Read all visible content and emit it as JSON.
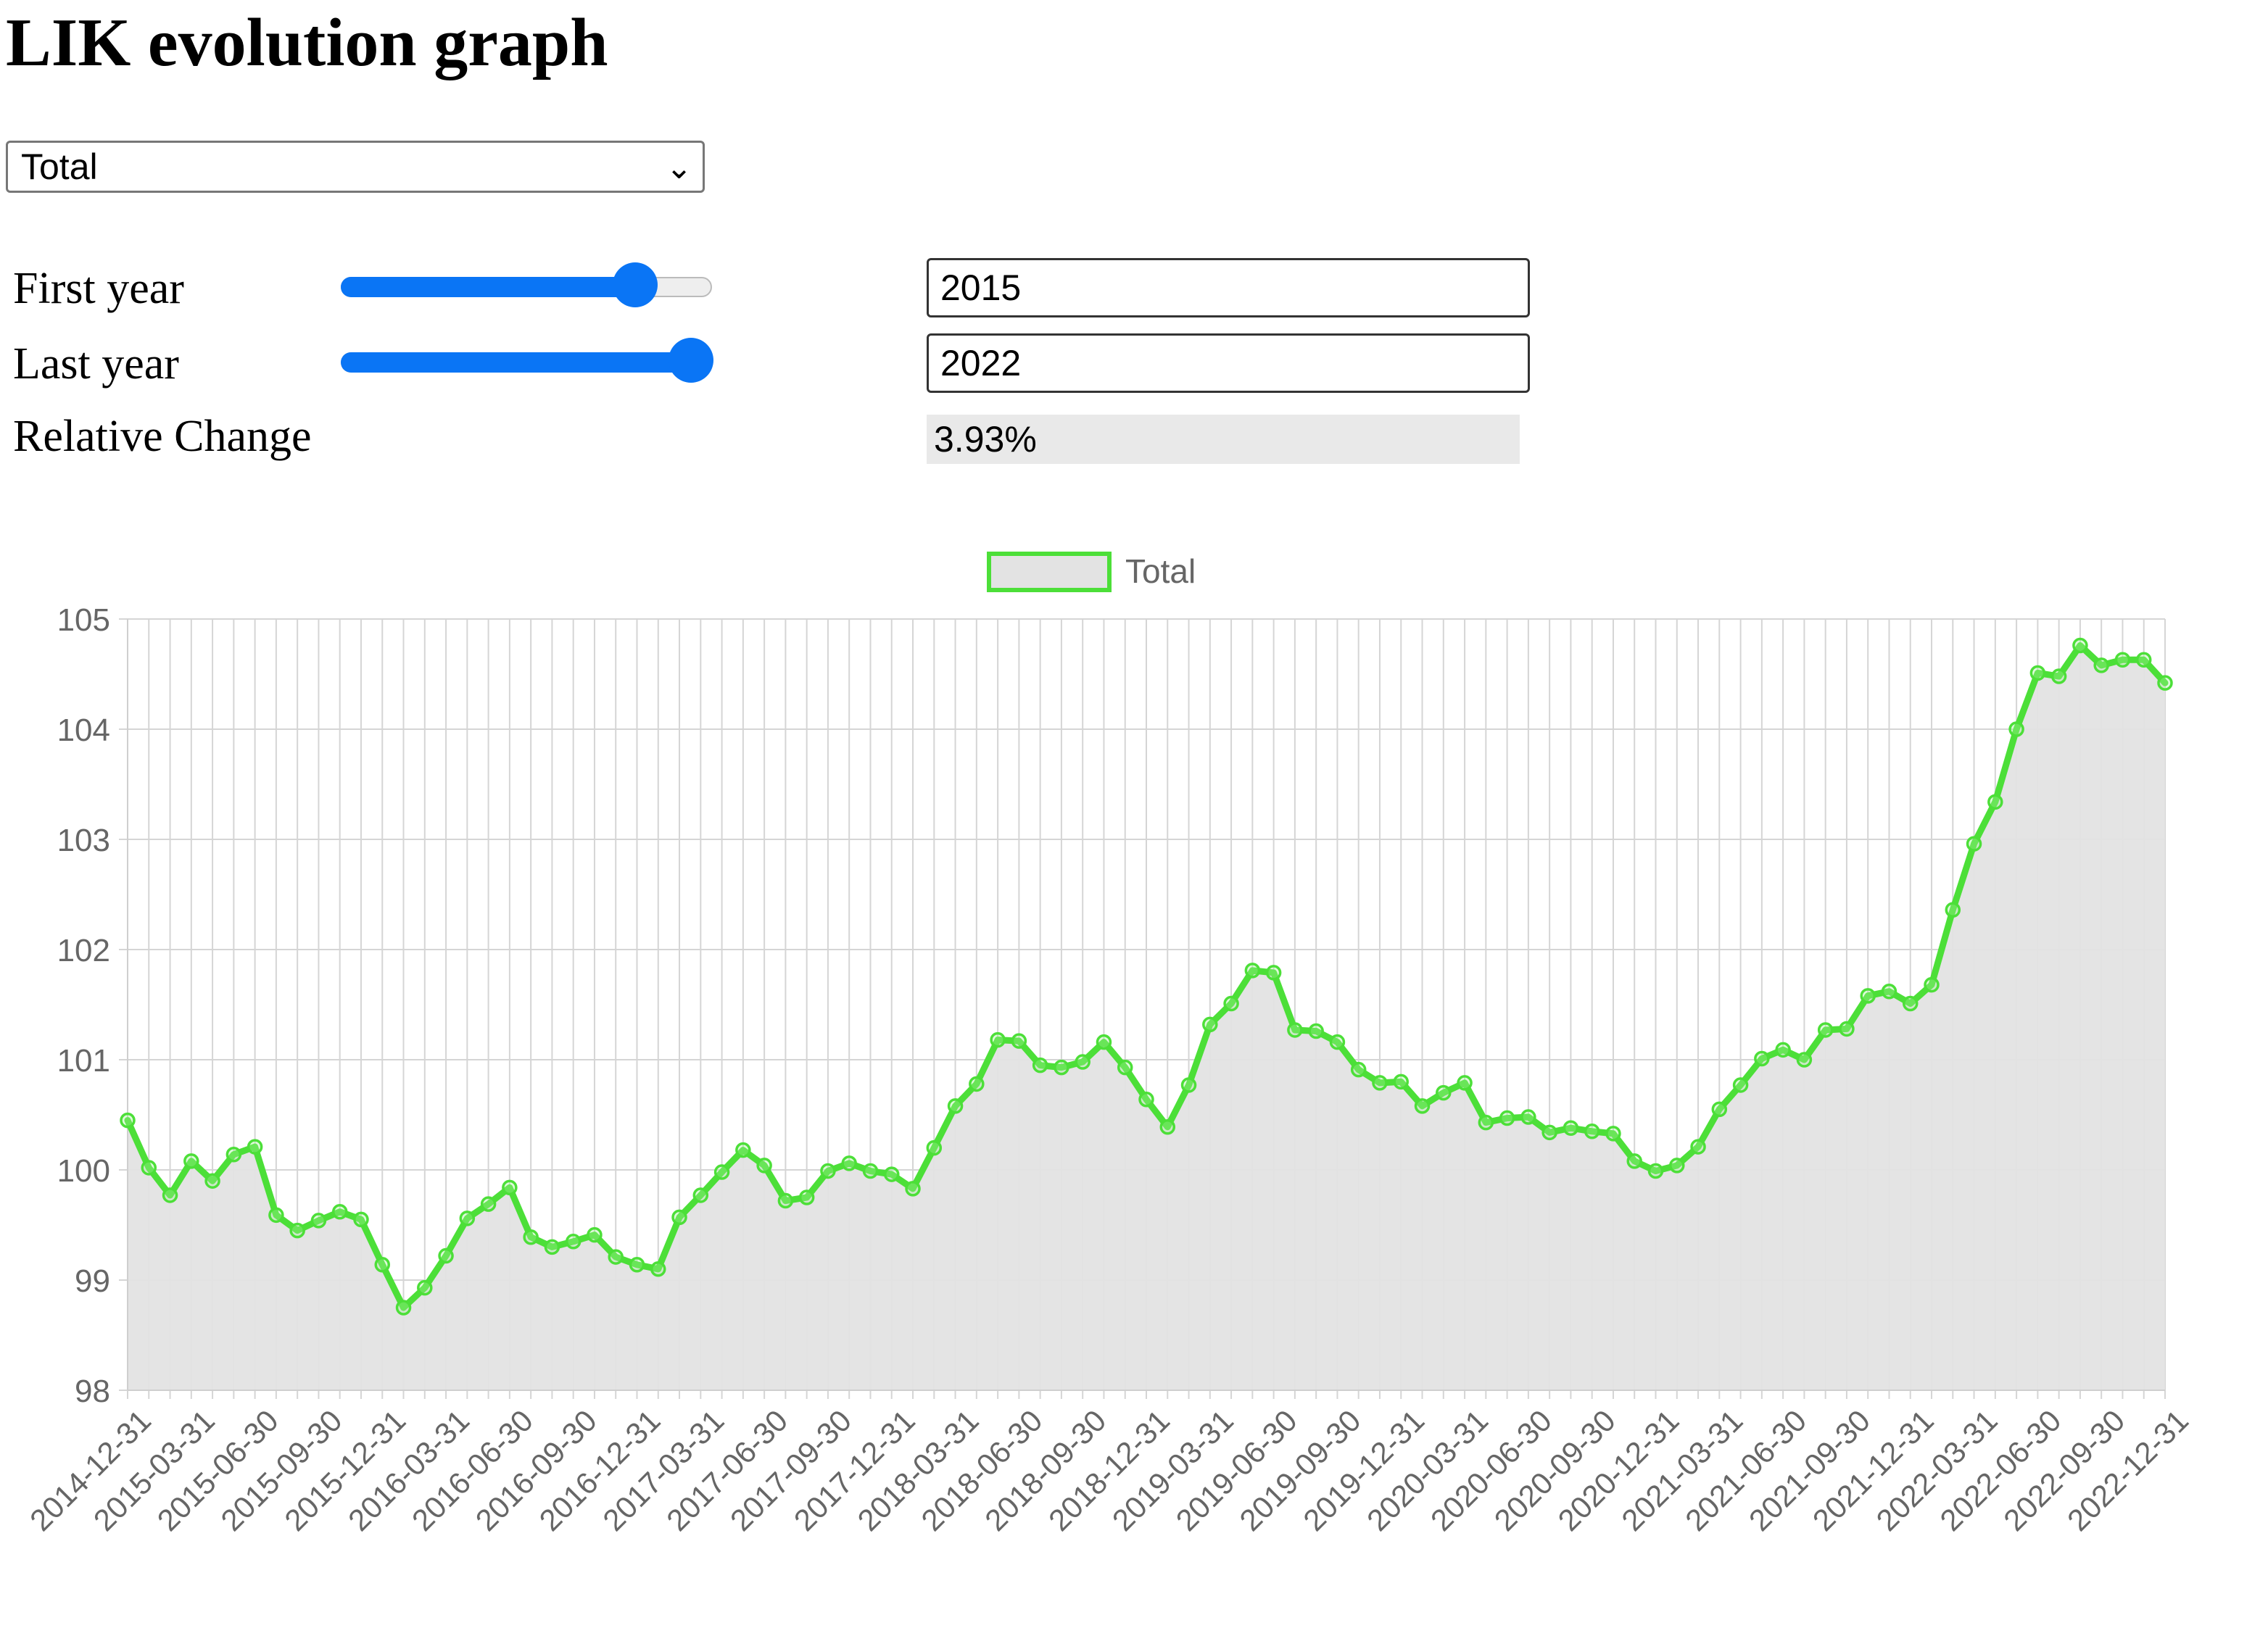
{
  "page": {
    "title": "LIK evolution graph"
  },
  "selector": {
    "selected": "Total"
  },
  "controls": {
    "first_year": {
      "label": "First year",
      "value": "2015",
      "slider_fraction": 0.79
    },
    "last_year": {
      "label": "Last year",
      "value": "2022",
      "slider_fraction": 0.94
    },
    "relative_change": {
      "label": "Relative Change",
      "value": "3.93%"
    }
  },
  "colors": {
    "slider": "#0a75f5",
    "line": "#4cdf38",
    "area": "#e3e3e3",
    "grid": "#d5d5d5"
  },
  "chart_data": {
    "type": "line",
    "legend": {
      "label": "Total",
      "placement": "top-center"
    },
    "fill": true,
    "grid": true,
    "ylim": [
      98,
      105
    ],
    "yticks": [
      98,
      99,
      100,
      101,
      102,
      103,
      104,
      105
    ],
    "xtick_labels": [
      "2014-12-31",
      "2015-03-31",
      "2015-06-30",
      "2015-09-30",
      "2015-12-31",
      "2016-03-31",
      "2016-06-30",
      "2016-09-30",
      "2016-12-31",
      "2017-03-31",
      "2017-06-30",
      "2017-09-30",
      "2017-12-31",
      "2018-03-31",
      "2018-06-30",
      "2018-09-30",
      "2018-12-31",
      "2019-03-31",
      "2019-06-30",
      "2019-09-30",
      "2019-12-31",
      "2020-03-31",
      "2020-06-30",
      "2020-09-30",
      "2020-12-31",
      "2021-03-31",
      "2021-06-30",
      "2021-09-30",
      "2021-12-31",
      "2022-03-31",
      "2022-06-30",
      "2022-09-30",
      "2022-12-31"
    ],
    "series": [
      {
        "name": "Total",
        "values": [
          100.45,
          100.02,
          99.77,
          100.08,
          99.9,
          100.14,
          100.21,
          99.59,
          99.45,
          99.54,
          99.62,
          99.55,
          99.14,
          98.75,
          98.93,
          99.22,
          99.56,
          99.69,
          99.84,
          99.39,
          99.3,
          99.35,
          99.41,
          99.21,
          99.14,
          99.1,
          99.57,
          99.77,
          99.98,
          100.18,
          100.04,
          99.72,
          99.75,
          99.99,
          100.06,
          99.99,
          99.96,
          99.83,
          100.2,
          100.58,
          100.78,
          101.18,
          101.17,
          100.95,
          100.93,
          100.98,
          101.16,
          100.93,
          100.64,
          100.39,
          100.77,
          101.32,
          101.51,
          101.81,
          101.79,
          101.27,
          101.26,
          101.16,
          100.91,
          100.79,
          100.8,
          100.58,
          100.7,
          100.79,
          100.43,
          100.47,
          100.48,
          100.34,
          100.38,
          100.35,
          100.33,
          100.08,
          99.99,
          100.04,
          100.21,
          100.55,
          100.77,
          101.01,
          101.09,
          101.0,
          101.27,
          101.28,
          101.58,
          101.62,
          101.51,
          101.68,
          102.36,
          102.96,
          103.34,
          104.0,
          104.51,
          104.48,
          104.76,
          104.58,
          104.63,
          104.63,
          104.42
        ]
      }
    ]
  }
}
